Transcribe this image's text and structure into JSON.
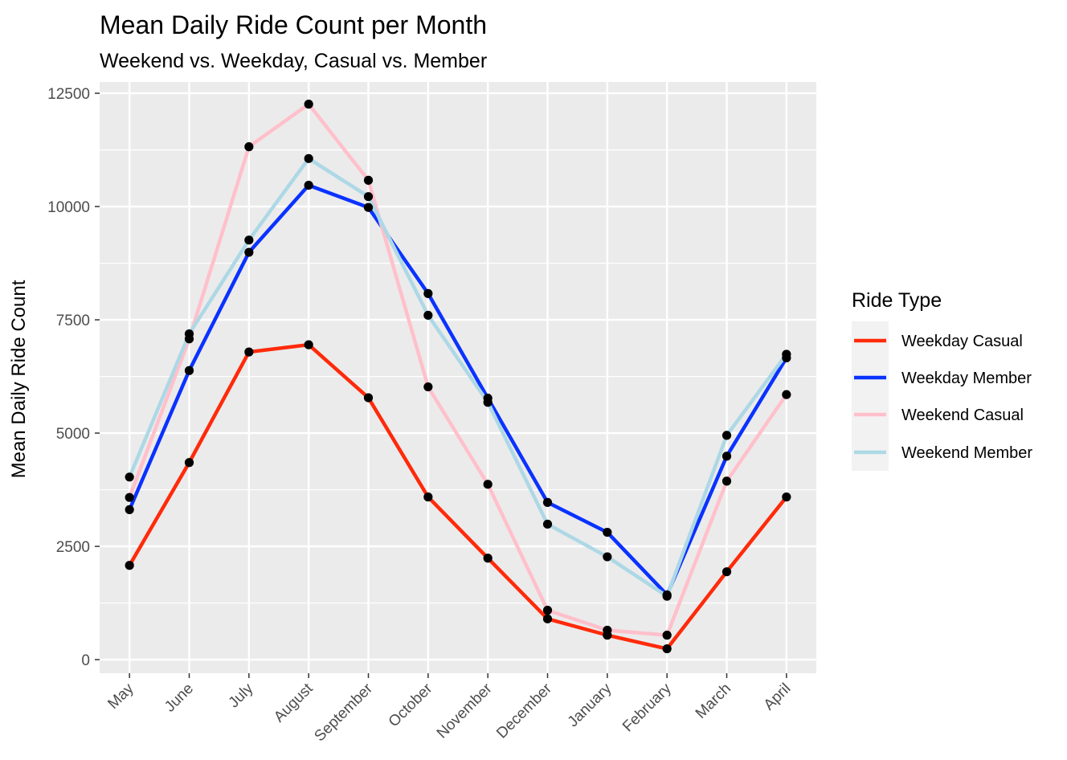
{
  "chart_data": {
    "type": "line",
    "title": "Mean Daily Ride Count per Month",
    "subtitle": "Weekend vs. Weekday, Casual vs. Member",
    "xlabel": "",
    "ylabel": "Mean Daily Ride Count",
    "categories": [
      "May",
      "June",
      "July",
      "August",
      "September",
      "October",
      "November",
      "December",
      "January",
      "February",
      "March",
      "April"
    ],
    "yticks": [
      0,
      2500,
      5000,
      7500,
      10000,
      12500
    ],
    "ytick_labels": [
      "0",
      "2500",
      "5000",
      "7500",
      "10000",
      "12500"
    ],
    "ylim": [
      -300,
      12750
    ],
    "grid": true,
    "legend": {
      "title": "Ride Type",
      "placement": "right"
    },
    "series": [
      {
        "name": "Weekday Casual",
        "color": "#ff2a0a",
        "values": [
          2080,
          4350,
          6790,
          6950,
          5780,
          3590,
          2240,
          900,
          540,
          240,
          1940,
          3590
        ]
      },
      {
        "name": "Weekday Member",
        "color": "#0a32ff",
        "values": [
          3310,
          6380,
          8990,
          10470,
          9980,
          8080,
          5770,
          3470,
          2810,
          1430,
          4490,
          6660
        ]
      },
      {
        "name": "Weekend Casual",
        "color": "#ffc0cb",
        "values": [
          3580,
          7080,
          11320,
          12260,
          10580,
          6020,
          3870,
          1090,
          650,
          540,
          3940,
          5850
        ]
      },
      {
        "name": "Weekend Member",
        "color": "#add8e6",
        "values": [
          4030,
          7190,
          9260,
          11060,
          10220,
          7600,
          5680,
          2990,
          2270,
          1400,
          4950,
          6740
        ]
      }
    ]
  }
}
